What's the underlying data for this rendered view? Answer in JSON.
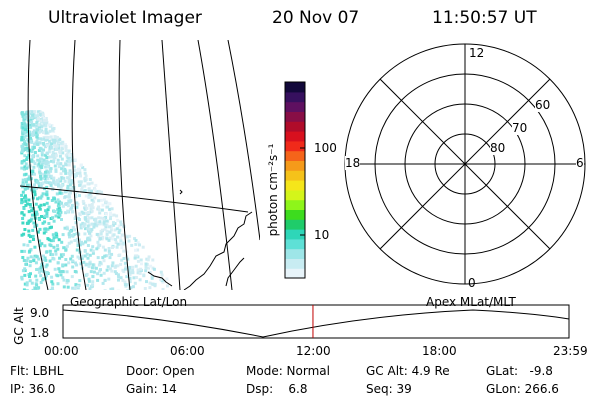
{
  "header": {
    "title": "Ultraviolet Imager",
    "date": "20 Nov 07",
    "time": "11:50:57 UT"
  },
  "colorbar": {
    "unit": "photon cm⁻²s⁻¹",
    "tick_100": "100",
    "tick_10": "10",
    "colors": [
      "#e8f4fa",
      "#c8ecf2",
      "#9ee6e8",
      "#5ee0d6",
      "#2ed6b8",
      "#1fcc6a",
      "#3ddc1e",
      "#8ef51a",
      "#d4f51a",
      "#f5e61a",
      "#f5c21a",
      "#f59a1a",
      "#f5641a",
      "#f02a1a",
      "#d8101e",
      "#b00c2a",
      "#880e46",
      "#5e1060",
      "#36105e",
      "#12083a"
    ]
  },
  "polar": {
    "mlt_labels": {
      "top": "12",
      "bottom": "0",
      "left": "18",
      "right": "6"
    },
    "lat_labels": [
      "60",
      "70",
      "80"
    ]
  },
  "timeline": {
    "left_label": "Geographic Lat/Lon",
    "right_label": "Apex  MLat/MLT",
    "axis_label": "GC Alt",
    "ymax": "9.0",
    "ymin": "1.8",
    "ticks": [
      "00:00",
      "06:00",
      "12:00",
      "18:00",
      "23:59"
    ],
    "current_fraction": 0.494
  },
  "status": {
    "flt": "Flt: LBHL",
    "ip": "IP: 36.0",
    "door": "Door: Open",
    "gain": "Gain: 14",
    "mode": "Mode: Normal",
    "dsp": "Dsp:    6.8",
    "gcalt": "GC Alt: 4.9 Re",
    "seq": "Seq: 39",
    "glat": "GLat:   -9.8",
    "glon": "GLon: 266.6"
  }
}
